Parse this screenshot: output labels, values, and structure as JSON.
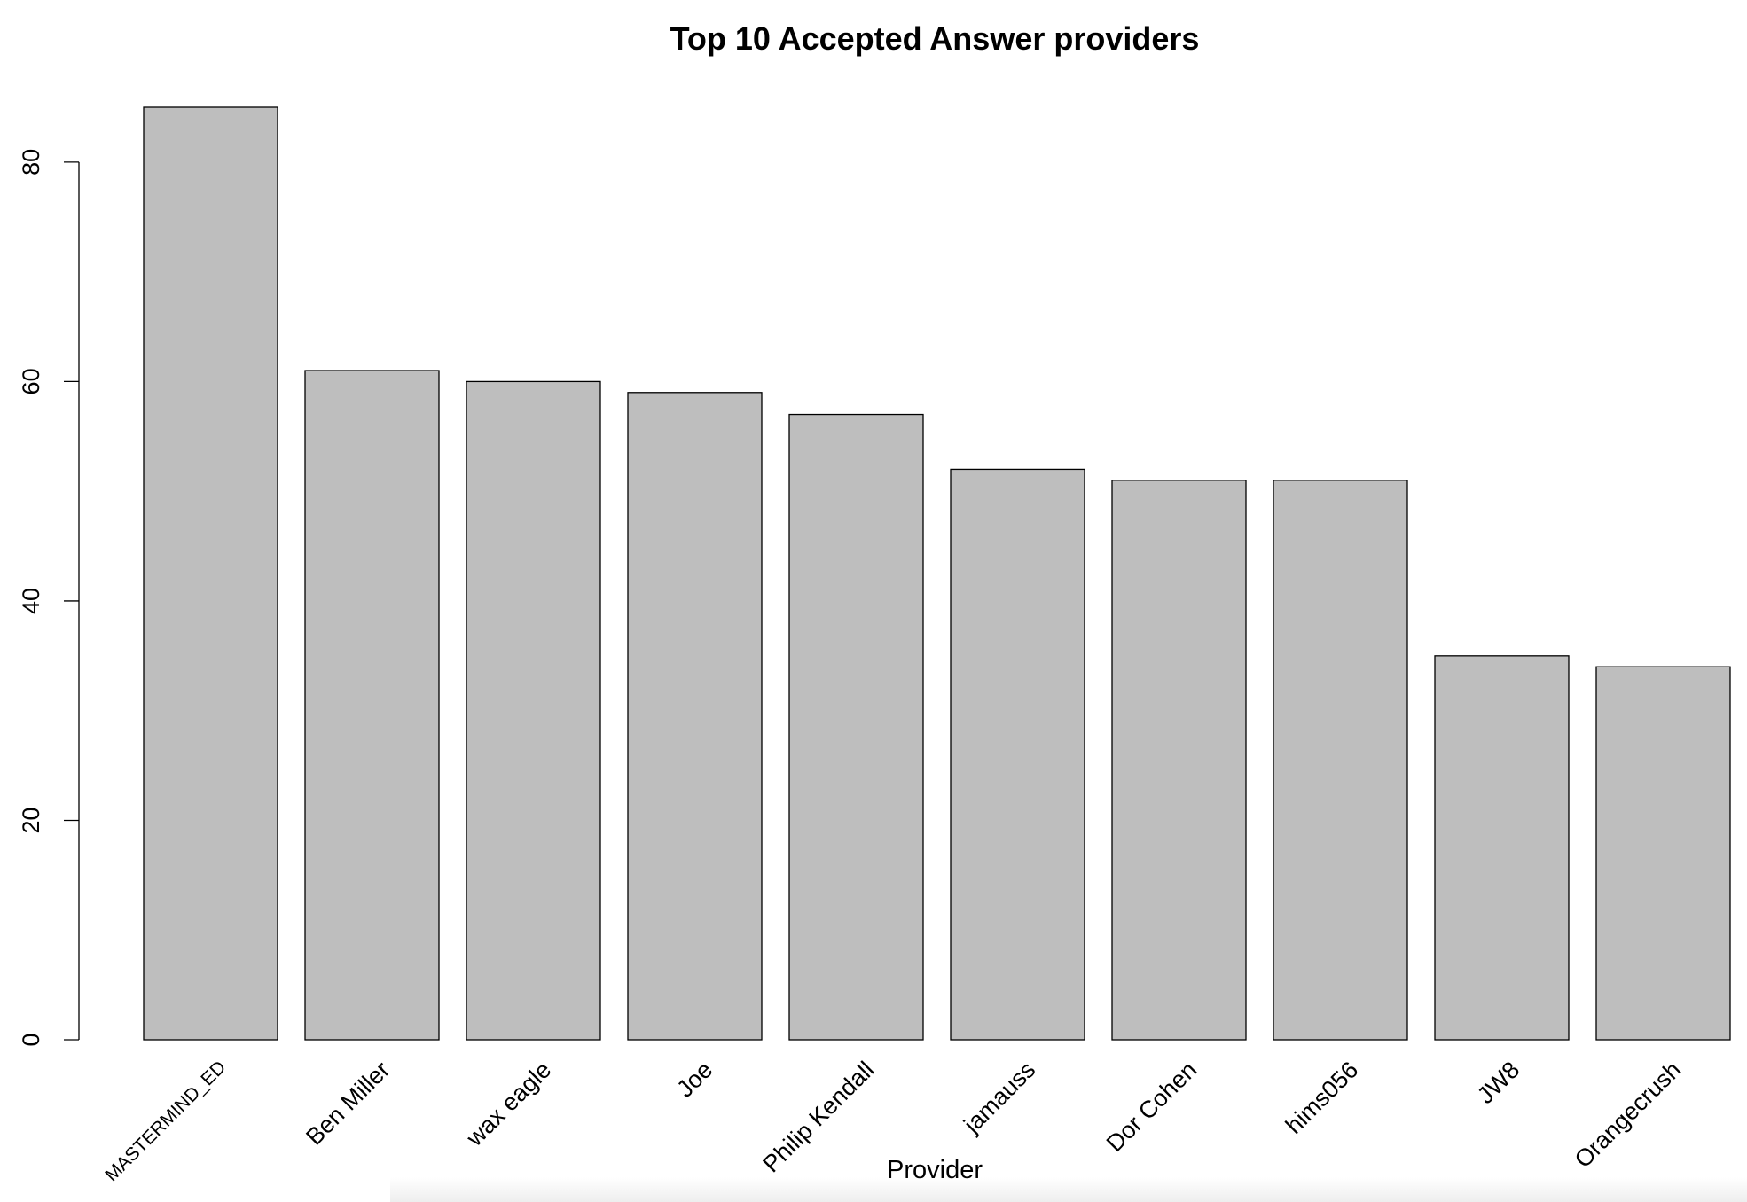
{
  "chart_data": {
    "type": "bar",
    "title": "Top 10 Accepted Answer providers",
    "xlabel": "Provider",
    "ylabel": "",
    "categories": [
      "MASTERMIND_ED",
      "Ben Miller",
      "wax eagle",
      "Joe",
      "Philip Kendall",
      "jamauss",
      "Dor Cohen",
      "hims056",
      "JW8",
      "Orangecrush"
    ],
    "values": [
      85,
      61,
      60,
      59,
      57,
      52,
      51,
      51,
      35,
      34
    ],
    "ylim": [
      0,
      85
    ],
    "yticks": [
      0,
      20,
      40,
      60,
      80
    ],
    "grid": false,
    "legend": "none",
    "bar_color": "#bebebe",
    "border_color": "#000000"
  }
}
